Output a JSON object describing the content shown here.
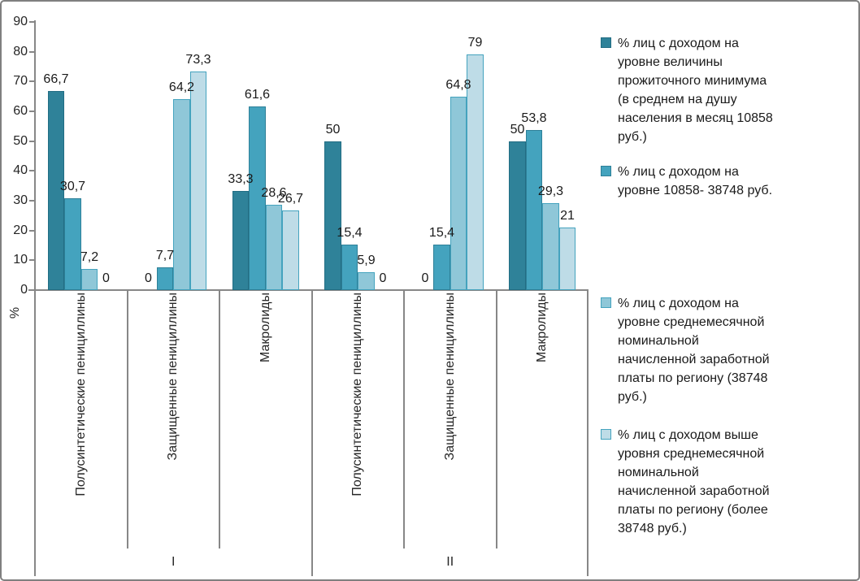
{
  "chart_data": {
    "type": "bar",
    "title": "",
    "ylabel": "%",
    "xlabel": "",
    "ylim": [
      0,
      90
    ],
    "ytick_step": 10,
    "grid": false,
    "legend_position": "right",
    "decimal_separator": ",",
    "group_labels": [
      "I",
      "II"
    ],
    "categories": [
      "Полусинтетические пенициллины",
      "Защищенные пенициллины",
      "Макролиды"
    ],
    "series": [
      {
        "name": "% лиц с доходом на уровне величины прожиточного минимума (в среднем на душу населения в  месяц 10858 руб.)",
        "legend_lines": [
          "% лиц с доходом на",
          "уровне величины",
          "прожиточного минимума",
          "(в среднем на душу",
          "населения в  месяц 10858",
          "руб.)"
        ],
        "fill": "#2F8299",
        "stroke": "#226D83",
        "values": {
          "I": [
            66.7,
            0,
            33.3
          ],
          "II": [
            50,
            0,
            50
          ]
        }
      },
      {
        "name": "% лиц с доходом на уровне 10858- 38748 руб.",
        "legend_lines": [
          "% лиц с доходом на",
          "уровне 10858- 38748 руб."
        ],
        "fill": "#44A3BE",
        "stroke": "#2E8098",
        "values": {
          "I": [
            30.7,
            7.7,
            61.6
          ],
          "II": [
            15.4,
            15.4,
            53.8
          ]
        }
      },
      {
        "name": "% лиц с доходом на уровне среднемесячной номинальной начисленной заработной платы по региону (38748 руб.)",
        "legend_lines": [
          "% лиц с доходом на",
          "уровне среднемесячной",
          "номинальной",
          "начисленной заработной",
          "платы по региону (38748",
          "руб.)"
        ],
        "fill": "#8FC7D8",
        "stroke": "#44A3BE",
        "values": {
          "I": [
            7.2,
            64.2,
            28.6
          ],
          "II": [
            5.9,
            64.8,
            29.3
          ]
        }
      },
      {
        "name": "% лиц с доходом выше уровня среднемесячной номинальной начисленной заработной платы по региону (более 38748 руб.)",
        "legend_lines": [
          "% лиц с доходом выше",
          "уровня среднемесячной",
          "номинальной",
          "начисленной заработной",
          "платы по региону (более",
          "38748 руб.)"
        ],
        "fill": "#BEDCE7",
        "stroke": "#44A3BE",
        "values": {
          "I": [
            0,
            73.3,
            26.7
          ],
          "II": [
            0,
            79,
            21
          ]
        }
      }
    ]
  }
}
